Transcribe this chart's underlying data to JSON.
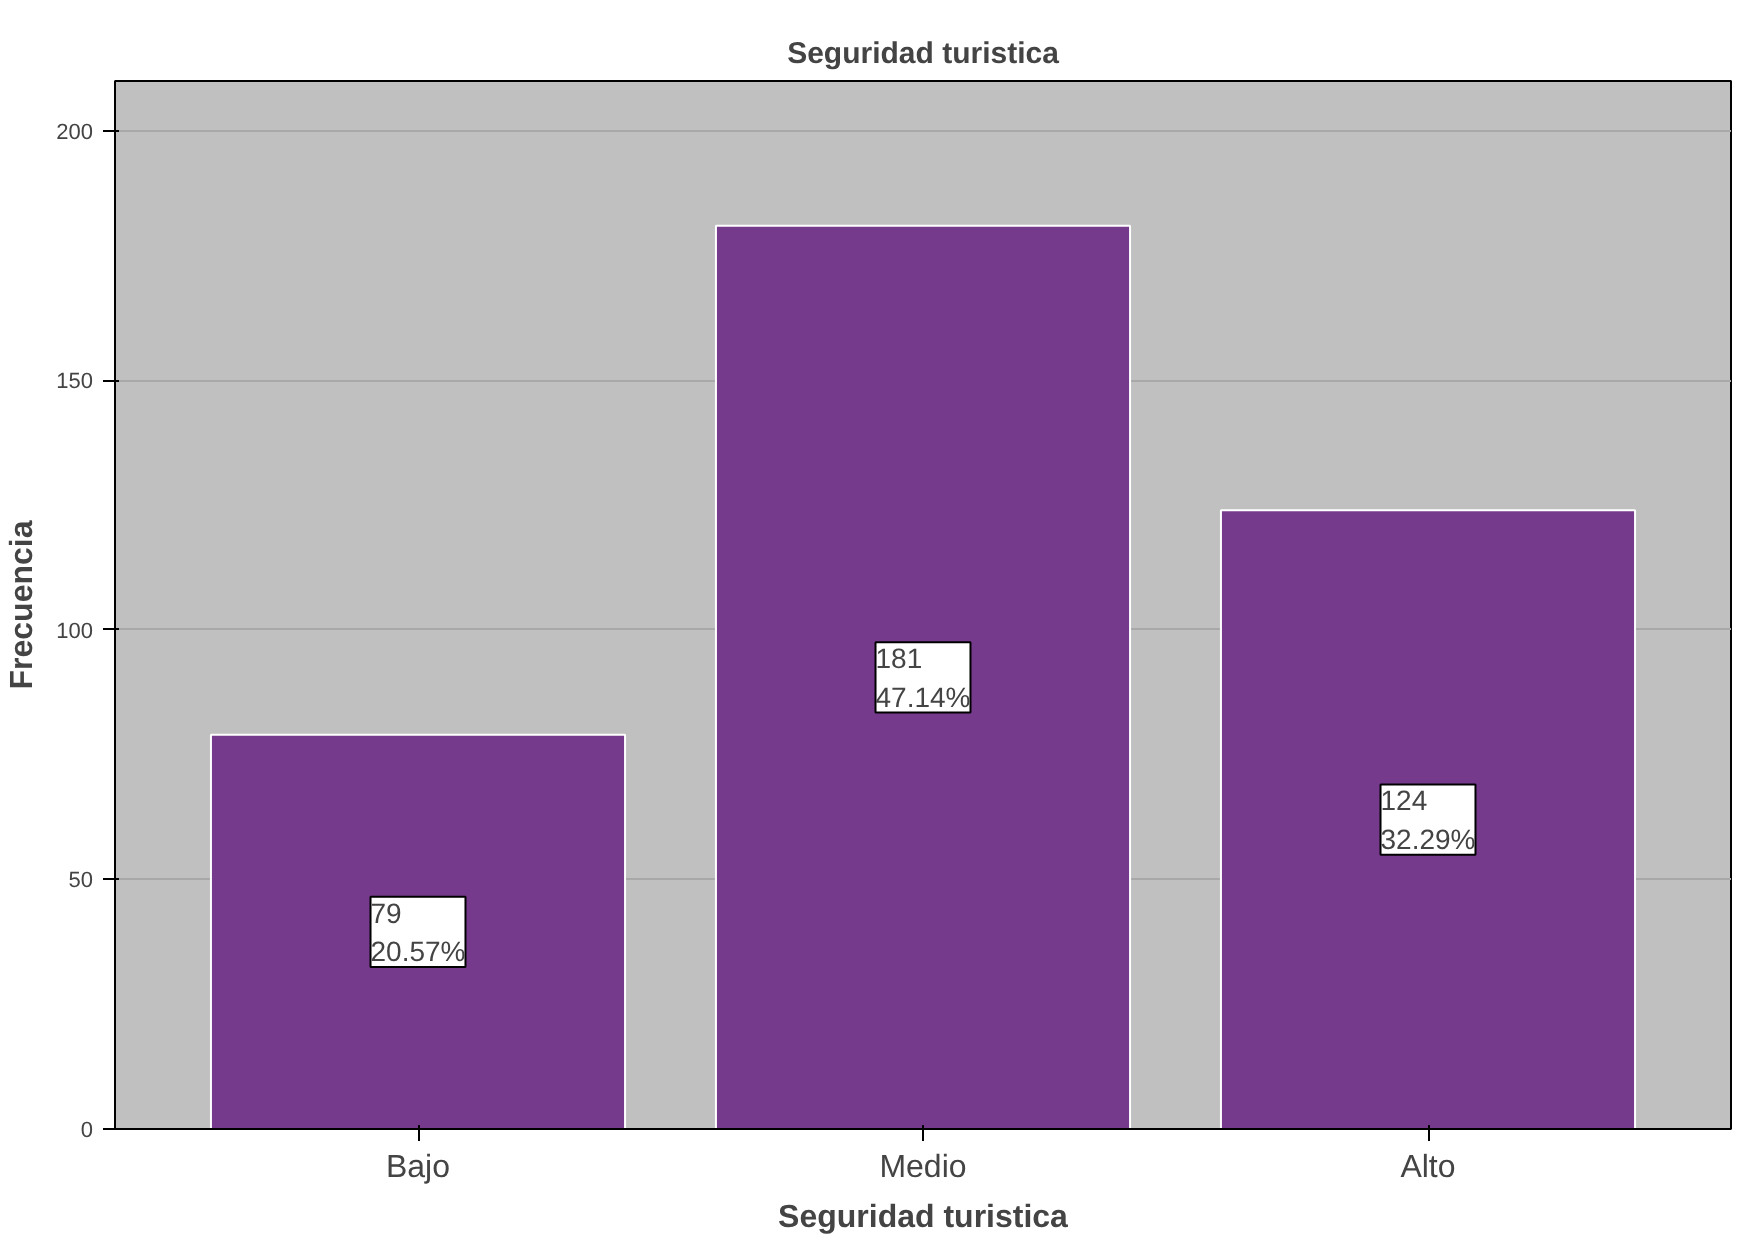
{
  "chart_data": {
    "type": "bar",
    "title": "Seguridad turistica",
    "xlabel": "Seguridad turistica",
    "ylabel": "Frecuencia",
    "categories": [
      "Bajo",
      "Medio",
      "Alto"
    ],
    "values": [
      79,
      181,
      124
    ],
    "value_labels": [
      "79\n20.57%",
      "181\n47.14%",
      "124\n32.29%"
    ],
    "color": "#763a8c",
    "ylim": [
      0,
      210
    ],
    "yticks": [
      0,
      50,
      100,
      150,
      200
    ],
    "grid": "y"
  }
}
